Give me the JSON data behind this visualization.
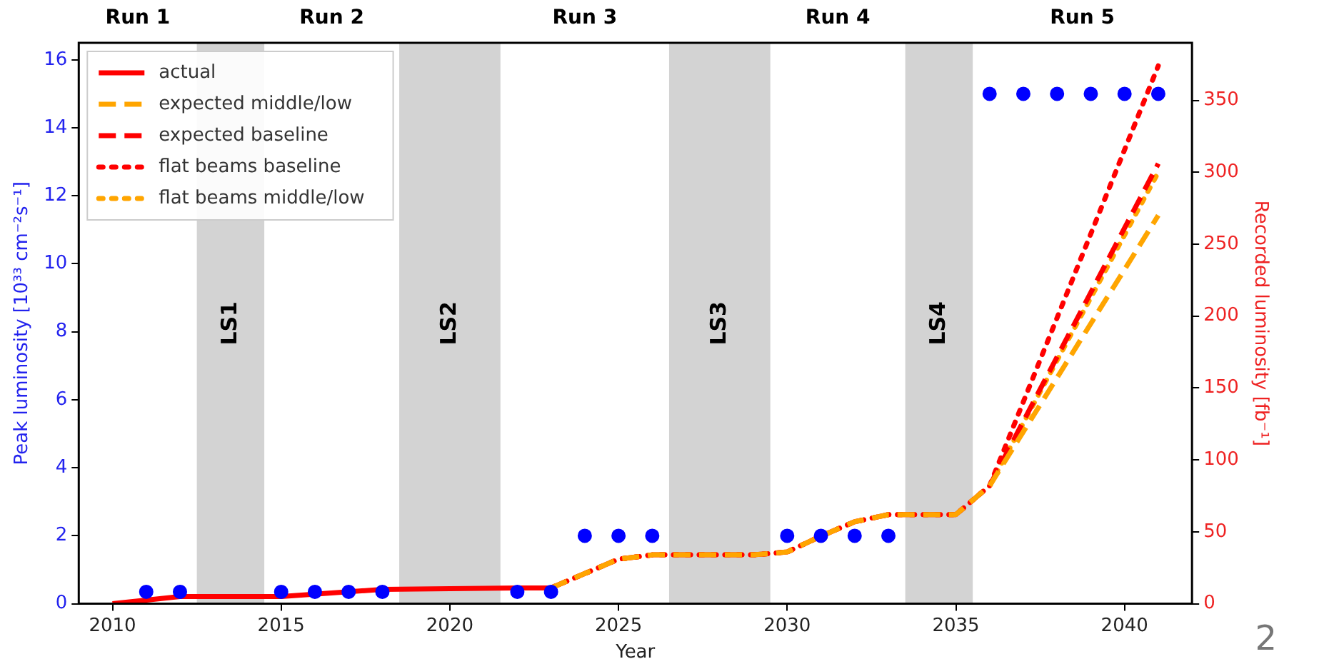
{
  "chart_data": {
    "type": "line",
    "xlabel": "Year",
    "ylabel": "Peak luminosity [10³³ cm⁻²s⁻¹]",
    "y2label": "Recorded luminosity [fb⁻¹]",
    "xlim": [
      2009,
      2042
    ],
    "xticks": [
      2010,
      2015,
      2020,
      2025,
      2030,
      2035,
      2040
    ],
    "ylim": [
      0,
      16.5
    ],
    "yticks": [
      0,
      2,
      4,
      6,
      8,
      10,
      12,
      14,
      16
    ],
    "y2lim": [
      0,
      390
    ],
    "y2ticks": [
      0,
      50,
      100,
      150,
      200,
      250,
      300,
      350
    ],
    "legend": "top left",
    "grid": false,
    "series": [
      {
        "type": "scatter",
        "axis": "y",
        "color": "#0000ff",
        "marker": "circle",
        "x": [
          2011,
          2012,
          2015,
          2016,
          2017,
          2018,
          2022,
          2023,
          2024,
          2025,
          2026,
          2030,
          2031,
          2032,
          2033,
          2036,
          2037,
          2038,
          2039,
          2040,
          2041
        ],
        "values": [
          0.35,
          0.35,
          0.35,
          0.35,
          0.35,
          0.35,
          0.35,
          0.35,
          2,
          2,
          2,
          2,
          2,
          2,
          2,
          15,
          15,
          15,
          15,
          15,
          15
        ]
      },
      {
        "name": "actual",
        "type": "line",
        "axis": "y2",
        "color": "#ff0000",
        "line_style": "solid",
        "marker": "none",
        "x": [
          2010,
          2012,
          2015,
          2018,
          2022,
          2023
        ],
        "values": [
          0,
          5,
          5,
          10,
          11,
          11
        ]
      },
      {
        "name": "expected middle/low",
        "type": "line",
        "axis": "y2",
        "color": "#ffa500",
        "line_style": "dashed",
        "marker": "none",
        "x": [
          2023,
          2024,
          2025,
          2026,
          2029,
          2030,
          2031,
          2032,
          2033,
          2035,
          2036,
          2041
        ],
        "values": [
          11,
          21,
          31,
          34,
          34,
          36,
          47,
          57,
          62,
          62,
          82,
          270
        ]
      },
      {
        "name": "expected baseline",
        "type": "line",
        "axis": "y2",
        "color": "#ff0000",
        "line_style": "dashed",
        "marker": "none",
        "x": [
          2023,
          2024,
          2025,
          2026,
          2029,
          2030,
          2031,
          2032,
          2033,
          2035,
          2036,
          2041
        ],
        "values": [
          11,
          21,
          31,
          34,
          34,
          36,
          47,
          57,
          62,
          62,
          82,
          306
        ]
      },
      {
        "name": "flat beams baseline",
        "type": "line",
        "axis": "y2",
        "color": "#ff0000",
        "line_style": "dotted",
        "marker": "none",
        "x": [
          2023,
          2024,
          2025,
          2026,
          2029,
          2030,
          2031,
          2032,
          2033,
          2035,
          2036,
          2041
        ],
        "values": [
          11,
          21,
          31,
          34,
          34,
          36,
          47,
          57,
          62,
          62,
          82,
          374
        ]
      },
      {
        "name": "flat beams middle/low",
        "type": "line",
        "axis": "y2",
        "color": "#ffa500",
        "line_style": "dotted",
        "marker": "none",
        "x": [
          2023,
          2024,
          2025,
          2026,
          2029,
          2030,
          2031,
          2032,
          2033,
          2035,
          2036,
          2041
        ],
        "values": [
          11,
          21,
          31,
          34,
          34,
          36,
          47,
          57,
          62,
          62,
          82,
          300
        ]
      }
    ],
    "bands": [
      {
        "axis": "x",
        "from": 2012.5,
        "to": 2014.5,
        "label": "LS1",
        "color": "#d3d3d3"
      },
      {
        "axis": "x",
        "from": 2018.5,
        "to": 2021.5,
        "label": "LS2",
        "color": "#d3d3d3"
      },
      {
        "axis": "x",
        "from": 2026.5,
        "to": 2029.5,
        "label": "LS3",
        "color": "#d3d3d3"
      },
      {
        "axis": "x",
        "from": 2033.5,
        "to": 2035.5,
        "label": "LS4",
        "color": "#d3d3d3"
      }
    ],
    "annotations": [
      "Run 1",
      "Run 2",
      "Run 3",
      "Run 4",
      "Run 5",
      "2"
    ]
  }
}
